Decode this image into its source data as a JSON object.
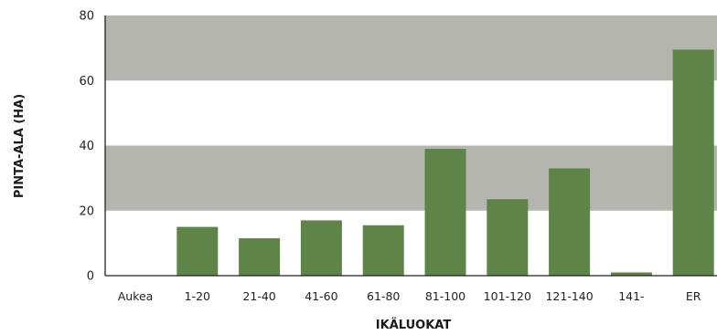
{
  "chart_data": {
    "type": "bar",
    "xlabel": "IKÄLUOKAT",
    "ylabel": "PINTA-ALA (HA)",
    "ylim": [
      0,
      80
    ],
    "yticks": [
      0,
      20,
      40,
      60,
      80
    ],
    "categories": [
      "Aukea",
      "1-20",
      "21-40",
      "41-60",
      "61-80",
      "81-100",
      "101-120",
      "121-140",
      "141-",
      "ER"
    ],
    "values": [
      0,
      15,
      11.5,
      17,
      15.5,
      39,
      23.5,
      33,
      1,
      69.5
    ],
    "bands": [
      [
        20,
        40
      ],
      [
        60,
        80
      ]
    ],
    "grid": false,
    "legend": "none",
    "colors": {
      "bar": "#5e8448",
      "band": "#b3b5ae",
      "axis": "#222222"
    }
  }
}
